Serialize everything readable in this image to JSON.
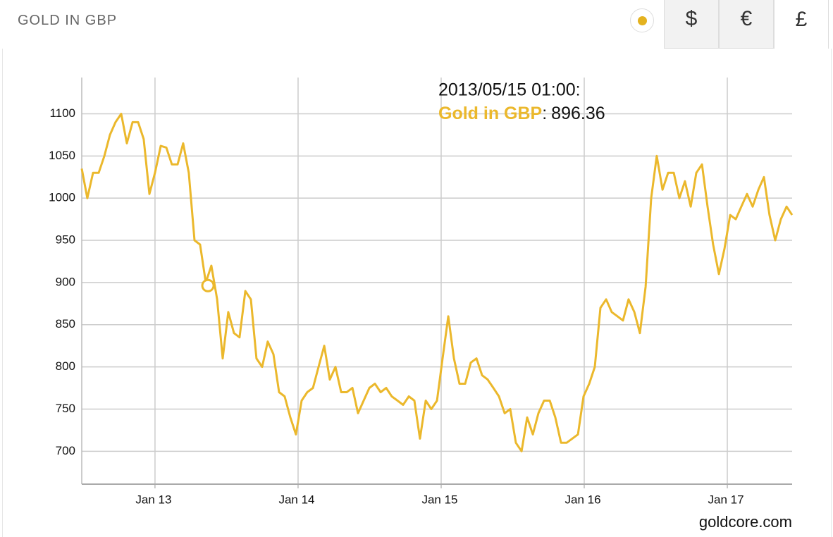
{
  "header": {
    "title": "GOLD IN GBP",
    "currencies": [
      "$",
      "€",
      "£"
    ],
    "active_currency": 2
  },
  "chart_data": {
    "type": "line",
    "source": "goldcore.com",
    "x": [
      2012.488,
      2012.527,
      2012.567,
      2012.606,
      2012.646,
      2012.685,
      2012.724,
      2012.764,
      2012.803,
      2012.843,
      2012.882,
      2012.921,
      2012.961,
      2013.0,
      2013.04,
      2013.079,
      2013.118,
      2013.158,
      2013.197,
      2013.236,
      2013.276,
      2013.315,
      2013.355,
      2013.394,
      2013.434,
      2013.473,
      2013.512,
      2013.552,
      2013.591,
      2013.631,
      2013.67,
      2013.709,
      2013.749,
      2013.788,
      2013.828,
      2013.867,
      2013.906,
      2013.946,
      2013.985,
      2014.025,
      2014.064,
      2014.104,
      2014.143,
      2014.183,
      2014.222,
      2014.261,
      2014.301,
      2014.34,
      2014.38,
      2014.419,
      2014.458,
      2014.498,
      2014.537,
      2014.577,
      2014.616,
      2014.655,
      2014.695,
      2014.734,
      2014.774,
      2014.813,
      2014.852,
      2014.892,
      2014.931,
      2014.971,
      2015.01,
      2015.05,
      2015.089,
      2015.128,
      2015.168,
      2015.207,
      2015.247,
      2015.286,
      2015.325,
      2015.365,
      2015.404,
      2015.444,
      2015.483,
      2015.522,
      2015.562,
      2015.601,
      2015.641,
      2015.68,
      2015.719,
      2015.759,
      2015.798,
      2015.838,
      2015.877,
      2015.916,
      2015.956,
      2015.995,
      2016.035,
      2016.074,
      2016.113,
      2016.153,
      2016.192,
      2016.232,
      2016.271,
      2016.31,
      2016.35,
      2016.389,
      2016.429,
      2016.468,
      2016.507,
      2016.547,
      2016.586,
      2016.626,
      2016.665,
      2016.704,
      2016.744,
      2016.783,
      2016.823,
      2016.862,
      2016.901,
      2016.941,
      2016.98,
      2017.02,
      2017.059,
      2017.098,
      2017.138,
      2017.177,
      2017.217,
      2017.256,
      2017.295,
      2017.335,
      2017.374,
      2017.414,
      2017.453
    ],
    "series": [
      {
        "name": "Gold in GBP",
        "color": "#ebb82c",
        "values": [
          1035,
          1000,
          1030,
          1030,
          1050,
          1075,
          1090,
          1100,
          1065,
          1090,
          1090,
          1070,
          1005,
          1030,
          1062,
          1060,
          1040,
          1040,
          1065,
          1030,
          950,
          945,
          900,
          920,
          880,
          810,
          865,
          840,
          835,
          890,
          880,
          810,
          800,
          830,
          815,
          770,
          765,
          740,
          720,
          760,
          770,
          775,
          800,
          825,
          785,
          800,
          770,
          770,
          775,
          745,
          760,
          775,
          780,
          770,
          775,
          765,
          760,
          755,
          765,
          760,
          715,
          760,
          750,
          760,
          810,
          860,
          810,
          780,
          780,
          805,
          810,
          790,
          785,
          775,
          765,
          745,
          750,
          710,
          700,
          740,
          720,
          745,
          760,
          760,
          740,
          710,
          710,
          715,
          720,
          765,
          780,
          800,
          870,
          880,
          865,
          860,
          855,
          880,
          865,
          840,
          895,
          1000,
          1050,
          1010,
          1030,
          1030,
          1000,
          1020,
          990,
          1030,
          1040,
          990,
          945,
          910,
          940,
          980,
          975,
          990,
          1005,
          990,
          1010,
          1025,
          980,
          950,
          975,
          990,
          980
        ]
      }
    ],
    "xlim": [
      2012.488,
      2017.453
    ],
    "xticks": [
      {
        "value": 2013,
        "label": "Jan 13"
      },
      {
        "value": 2014,
        "label": "Jan 14"
      },
      {
        "value": 2015,
        "label": "Jan 15"
      },
      {
        "value": 2016,
        "label": "Jan 16"
      },
      {
        "value": 2017,
        "label": "Jan 17"
      }
    ],
    "ylim": [
      661,
      1143
    ],
    "yticks": [
      700,
      750,
      800,
      850,
      900,
      950,
      1000,
      1050,
      1100
    ],
    "grid": true,
    "tooltip": {
      "date": "2013/05/15 01:00:",
      "separator": ":",
      "value": 896.36,
      "x": 2013.37
    }
  }
}
